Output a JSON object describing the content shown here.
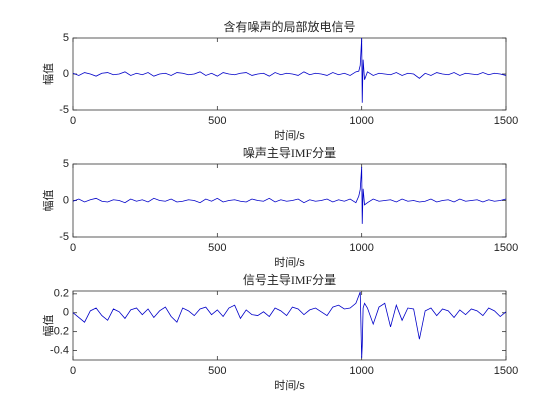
{
  "chart_data": [
    {
      "type": "line",
      "title": "含有噪声的局部放电信号",
      "xlabel": "时间/s",
      "ylabel": "幅值",
      "color": "#0000c8",
      "xlim": [
        0,
        1500
      ],
      "xticks": [
        0,
        500,
        1000,
        1500
      ],
      "ylim": [
        -5,
        5
      ],
      "yticks": [
        -5,
        0,
        5
      ],
      "x": [
        0,
        20,
        40,
        60,
        80,
        100,
        120,
        140,
        160,
        180,
        200,
        220,
        240,
        260,
        280,
        300,
        320,
        340,
        360,
        380,
        400,
        420,
        440,
        460,
        480,
        500,
        520,
        540,
        560,
        580,
        600,
        620,
        640,
        660,
        680,
        700,
        720,
        740,
        760,
        780,
        800,
        820,
        840,
        860,
        880,
        900,
        920,
        940,
        960,
        980,
        990,
        995,
        1000,
        1002,
        1005,
        1010,
        1020,
        1040,
        1060,
        1080,
        1100,
        1120,
        1140,
        1160,
        1180,
        1200,
        1220,
        1240,
        1260,
        1280,
        1300,
        1320,
        1340,
        1360,
        1380,
        1400,
        1420,
        1440,
        1460,
        1480,
        1500
      ],
      "values": [
        0.1,
        -0.2,
        0.2,
        0.0,
        -0.3,
        0.1,
        0.2,
        -0.1,
        0.0,
        0.3,
        -0.2,
        0.1,
        -0.1,
        0.2,
        -0.3,
        0.0,
        0.1,
        -0.2,
        0.2,
        0.1,
        -0.1,
        0.0,
        0.3,
        -0.2,
        0.1,
        -0.3,
        0.2,
        0.0,
        -0.1,
        0.1,
        0.2,
        -0.2,
        0.0,
        0.1,
        -0.3,
        0.2,
        -0.1,
        0.1,
        0.0,
        -0.2,
        0.3,
        -0.1,
        0.1,
        0.0,
        -0.2,
        0.2,
        -0.1,
        0.1,
        -0.2,
        0.3,
        0.4,
        1.2,
        5,
        -4,
        2,
        -0.8,
        0.3,
        -0.2,
        0.1,
        0.0,
        -0.1,
        0.2,
        -0.2,
        0.1,
        0.0,
        -0.6,
        0.1,
        -0.2,
        0.2,
        0.0,
        -0.1,
        0.2,
        -0.2,
        0.1,
        0.0,
        -0.1,
        0.2,
        -0.1,
        0.1,
        0.0,
        -0.2
      ]
    },
    {
      "type": "line",
      "title": "噪声主导IMF分量",
      "xlabel": "时间/s",
      "ylabel": "幅值",
      "color": "#0000c8",
      "xlim": [
        0,
        1500
      ],
      "xticks": [
        0,
        500,
        1000,
        1500
      ],
      "ylim": [
        -5,
        5
      ],
      "yticks": [
        -5,
        0,
        5
      ],
      "x": [
        0,
        20,
        40,
        60,
        80,
        100,
        120,
        140,
        160,
        180,
        200,
        220,
        240,
        260,
        280,
        300,
        320,
        340,
        360,
        380,
        400,
        420,
        440,
        460,
        480,
        500,
        520,
        540,
        560,
        580,
        600,
        620,
        640,
        660,
        680,
        700,
        720,
        740,
        760,
        780,
        800,
        820,
        840,
        860,
        880,
        900,
        920,
        940,
        960,
        980,
        990,
        995,
        1000,
        1002,
        1005,
        1010,
        1020,
        1040,
        1060,
        1080,
        1100,
        1120,
        1140,
        1160,
        1180,
        1200,
        1220,
        1240,
        1260,
        1280,
        1300,
        1320,
        1340,
        1360,
        1380,
        1400,
        1420,
        1440,
        1460,
        1480,
        1500
      ],
      "values": [
        -0.1,
        0.2,
        -0.2,
        0.1,
        0.3,
        -0.1,
        -0.2,
        0.1,
        0.0,
        -0.3,
        0.2,
        -0.1,
        0.1,
        -0.2,
        0.3,
        0.0,
        -0.1,
        0.2,
        -0.2,
        -0.1,
        0.1,
        0.0,
        -0.3,
        0.2,
        -0.1,
        0.3,
        -0.2,
        0.0,
        0.1,
        -0.1,
        -0.2,
        0.2,
        0.0,
        -0.1,
        0.3,
        -0.2,
        0.1,
        -0.1,
        0.0,
        0.2,
        -0.3,
        0.1,
        -0.1,
        0.0,
        0.2,
        -0.2,
        0.1,
        -0.1,
        0.2,
        -0.3,
        0.6,
        1.5,
        4.6,
        -3.2,
        1.6,
        -0.6,
        -0.3,
        0.2,
        -0.1,
        0.0,
        0.1,
        -0.2,
        0.2,
        -0.1,
        0.0,
        -0.2,
        -0.1,
        0.2,
        -0.2,
        0.0,
        0.1,
        -0.2,
        0.2,
        -0.1,
        0.0,
        0.1,
        -0.2,
        0.1,
        -0.1,
        0.0,
        0.2
      ]
    },
    {
      "type": "line",
      "title": "信号主导IMF分量",
      "xlabel": "时间/s",
      "ylabel": "幅值",
      "color": "#0000c8",
      "xlim": [
        0,
        1500
      ],
      "xticks": [
        0,
        500,
        1000,
        1500
      ],
      "ylim": [
        -0.5,
        0.23
      ],
      "yticks": [
        -0.4,
        -0.2,
        0,
        0.2
      ],
      "x": [
        0,
        20,
        40,
        60,
        80,
        100,
        120,
        140,
        160,
        180,
        200,
        220,
        240,
        260,
        280,
        300,
        320,
        340,
        360,
        380,
        400,
        420,
        440,
        460,
        480,
        500,
        520,
        540,
        560,
        580,
        600,
        620,
        640,
        660,
        680,
        700,
        720,
        740,
        760,
        780,
        800,
        820,
        840,
        860,
        880,
        900,
        920,
        940,
        960,
        980,
        990,
        995,
        1000,
        1002,
        1005,
        1010,
        1020,
        1040,
        1060,
        1080,
        1100,
        1120,
        1140,
        1160,
        1180,
        1200,
        1220,
        1240,
        1260,
        1280,
        1300,
        1320,
        1340,
        1360,
        1380,
        1400,
        1420,
        1440,
        1460,
        1480,
        1500
      ],
      "values": [
        0,
        -0.05,
        -0.1,
        0.02,
        0.05,
        -0.03,
        -0.08,
        0.04,
        0.01,
        -0.06,
        0.03,
        0.05,
        -0.02,
        0.04,
        -0.05,
        0.02,
        0.06,
        -0.04,
        -0.1,
        0.05,
        0.02,
        -0.03,
        0.04,
        0.06,
        -0.02,
        0.03,
        -0.04,
        0.05,
        0.08,
        -0.06,
        0.03,
        -0.02,
        -0.03,
        0.01,
        -0.04,
        0.05,
        0.02,
        -0.03,
        0.06,
        0.04,
        -0.02,
        0.03,
        0.05,
        0.01,
        -0.03,
        0.06,
        0.08,
        0.04,
        0.05,
        0.1,
        0.18,
        0.22,
        -0.48,
        -0.35,
        0.05,
        0.1,
        0.05,
        -0.12,
        0.06,
        0.1,
        -0.15,
        0.08,
        -0.08,
        0.05,
        0.04,
        -0.28,
        0.02,
        0.05,
        -0.03,
        0.04,
        0.02,
        -0.05,
        0.03,
        -0.02,
        0.04,
        0.02,
        -0.03,
        0.05,
        0.02,
        -0.04,
        0.01
      ]
    }
  ]
}
